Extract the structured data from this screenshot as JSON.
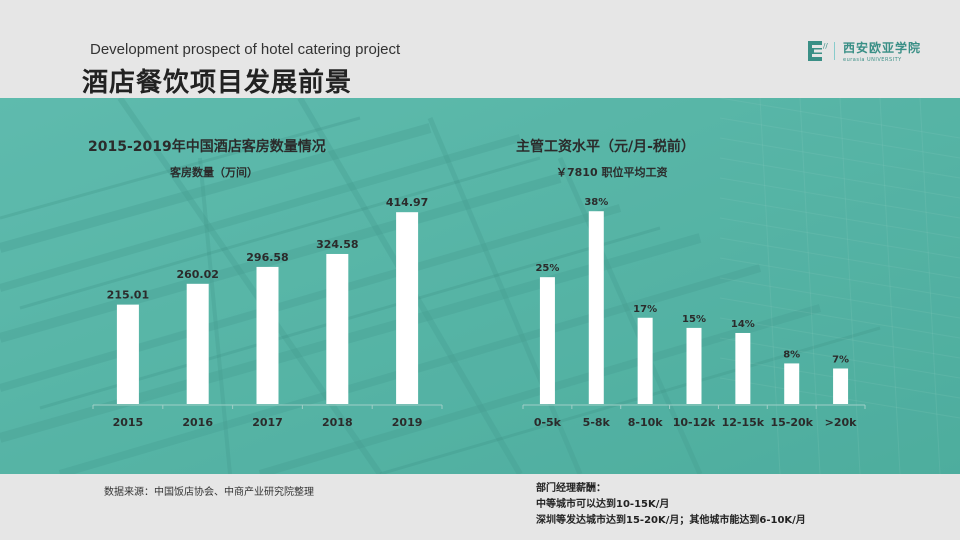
{
  "header": {
    "subtitle_en": "Development prospect of hotel catering project",
    "title_cn": "酒店餐饮项目发展前景"
  },
  "logo": {
    "text_cn": "西安欧亚学院",
    "text_en": "eurasia UNIVERSITY"
  },
  "colors": {
    "banner": "#52b0a2",
    "bar": "#ffffff",
    "text": "#2b2b2b"
  },
  "chart_data": [
    {
      "type": "bar",
      "title": "2015-2019年中国酒店客房数量情况",
      "subtitle": "客房数量（万间）",
      "categories": [
        "2015",
        "2016",
        "2017",
        "2018",
        "2019"
      ],
      "values": [
        215.01,
        260.02,
        296.58,
        324.58,
        414.97
      ],
      "data_labels": [
        "215.01",
        "260.02",
        "296.58",
        "324.58",
        "414.97"
      ],
      "ylim": [
        0,
        450
      ],
      "grid": false,
      "legend": "none"
    },
    {
      "type": "bar",
      "title": "主管工资水平（元/月-税前）",
      "subtitle": "￥7810  职位平均工资",
      "categories": [
        "0-5k",
        "5-8k",
        "8-10k",
        "10-12k",
        "12-15k",
        "15-20k",
        ">20k"
      ],
      "values": [
        25,
        38,
        17,
        15,
        14,
        8,
        7
      ],
      "data_labels": [
        "25%",
        "38%",
        "17%",
        "15%",
        "14%",
        "8%",
        "7%"
      ],
      "ylim": [
        0,
        41
      ],
      "grid": false,
      "legend": "none"
    }
  ],
  "footer": {
    "source": "数据来源：中国饭店协会、中商产业研究院整理",
    "note_lines": [
      "部门经理薪酬：",
      "中等城市可以达到10-15K/月",
      "深圳等发达城市达到15-20K/月；其他城市能达到6-10K/月"
    ]
  }
}
